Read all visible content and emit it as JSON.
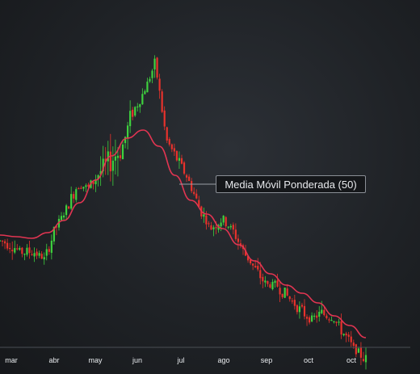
{
  "chart_data": {
    "type": "candlestick",
    "xlabel": "",
    "ylabel": "",
    "x_ticks": [
      "mar",
      "abr",
      "may",
      "jun",
      "jul",
      "ago",
      "sep",
      "oct",
      "oct"
    ],
    "ylim": [
      0,
      463
    ],
    "series": [
      {
        "name": "Media Móvil Ponderada (50)",
        "type": "line",
        "values": [
          172,
          170,
          168,
          175,
          190,
          212,
          240,
          270,
          292,
          302,
          282,
          246,
          215,
          198,
          180,
          160,
          140,
          124,
          110,
          100,
          88,
          72,
          60,
          45
        ]
      },
      {
        "name": "",
        "type": "candlestick",
        "close_path": [
          165,
          160,
          150,
          152,
          142,
          180,
          205,
          235,
          230,
          250,
          265,
          280,
          325,
          350,
          385,
          290,
          265,
          240,
          205,
          180,
          192,
          178,
          150,
          130,
          110,
          110,
          95,
          80,
          68,
          75,
          70,
          50,
          30,
          18
        ]
      }
    ],
    "up_color": "#3ed13e",
    "down_color": "#e8322c",
    "ma_color": "#e23552",
    "grid": false,
    "legend": "none"
  },
  "tooltip": {
    "label": "Media Móvil Ponderada (50)"
  },
  "colors": {
    "background": "#1f2226",
    "axis_text": "#e9ecef"
  }
}
